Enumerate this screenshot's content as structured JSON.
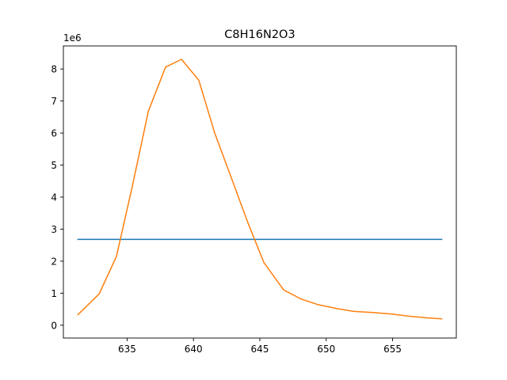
{
  "chart_data": {
    "type": "line",
    "title": "C8H16N2O3",
    "xlabel": "",
    "ylabel": "",
    "y_offset_label": "1e6",
    "xlim": [
      630.2,
      659.8
    ],
    "ylim": [
      -0.4,
      8.72
    ],
    "x_ticks": [
      635,
      640,
      645,
      650,
      655
    ],
    "y_ticks": [
      0,
      1,
      2,
      3,
      4,
      5,
      6,
      7,
      8
    ],
    "grid": false,
    "series": [
      {
        "color": "#1f77b4",
        "x": [
          631.3,
          658.7
        ],
        "y": [
          2.68,
          2.68
        ]
      },
      {
        "color": "#ff7f0e",
        "x": [
          631.3,
          632.9,
          634.2,
          635.4,
          636.6,
          637.9,
          639.1,
          640.4,
          641.6,
          642.9,
          644.1,
          645.3,
          646.8,
          648.1,
          649.4,
          650.8,
          652.1,
          653.4,
          654.9,
          656.3,
          657.6,
          658.7
        ],
        "y": [
          0.33,
          0.98,
          2.15,
          4.35,
          6.68,
          8.06,
          8.3,
          7.65,
          6.0,
          4.55,
          3.2,
          1.96,
          1.1,
          0.82,
          0.64,
          0.52,
          0.43,
          0.4,
          0.35,
          0.28,
          0.23,
          0.2
        ]
      }
    ]
  }
}
